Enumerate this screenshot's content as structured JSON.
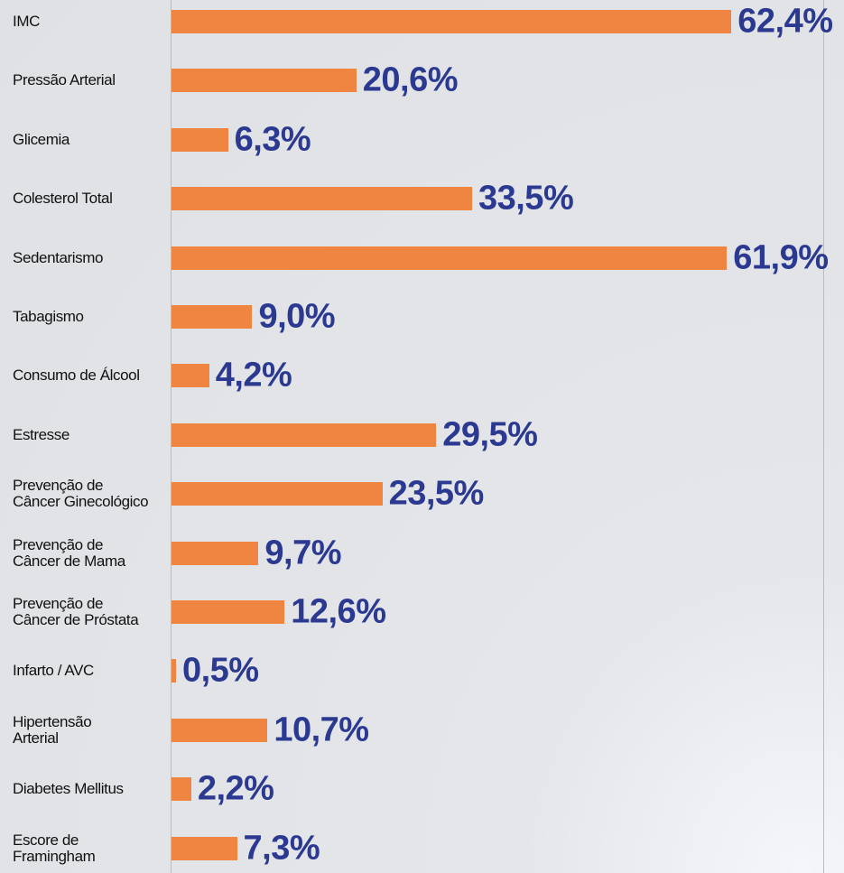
{
  "chart_data": {
    "type": "barh",
    "categories": [
      "IMC",
      "Pressão Arterial",
      "Glicemia",
      "Colesterol Total",
      "Sedentarismo",
      "Tabagismo",
      "Consumo de Álcool",
      "Estresse",
      "Prevenção de\nCâncer Ginecológico",
      "Prevenção de\nCâncer de Mama",
      "Prevenção de\nCâncer de Próstata",
      "Infarto / AVC",
      "Hipertensão\nArterial",
      "Diabetes Mellitus",
      "Escore de\nFramingham"
    ],
    "values": [
      62.4,
      20.6,
      6.3,
      33.5,
      61.9,
      9.0,
      4.2,
      29.5,
      23.5,
      9.7,
      12.6,
      0.5,
      10.7,
      2.2,
      7.3
    ],
    "value_labels": [
      "62,4%",
      "20,6%",
      "6,3%",
      "33,5%",
      "61,9%",
      "9,0%",
      "4,2%",
      "29,5%",
      "23,5%",
      "9,7%",
      "12,6%",
      "0,5%",
      "10,7%",
      "2,2%",
      "7,3%"
    ],
    "color": "#f08441"
  }
}
